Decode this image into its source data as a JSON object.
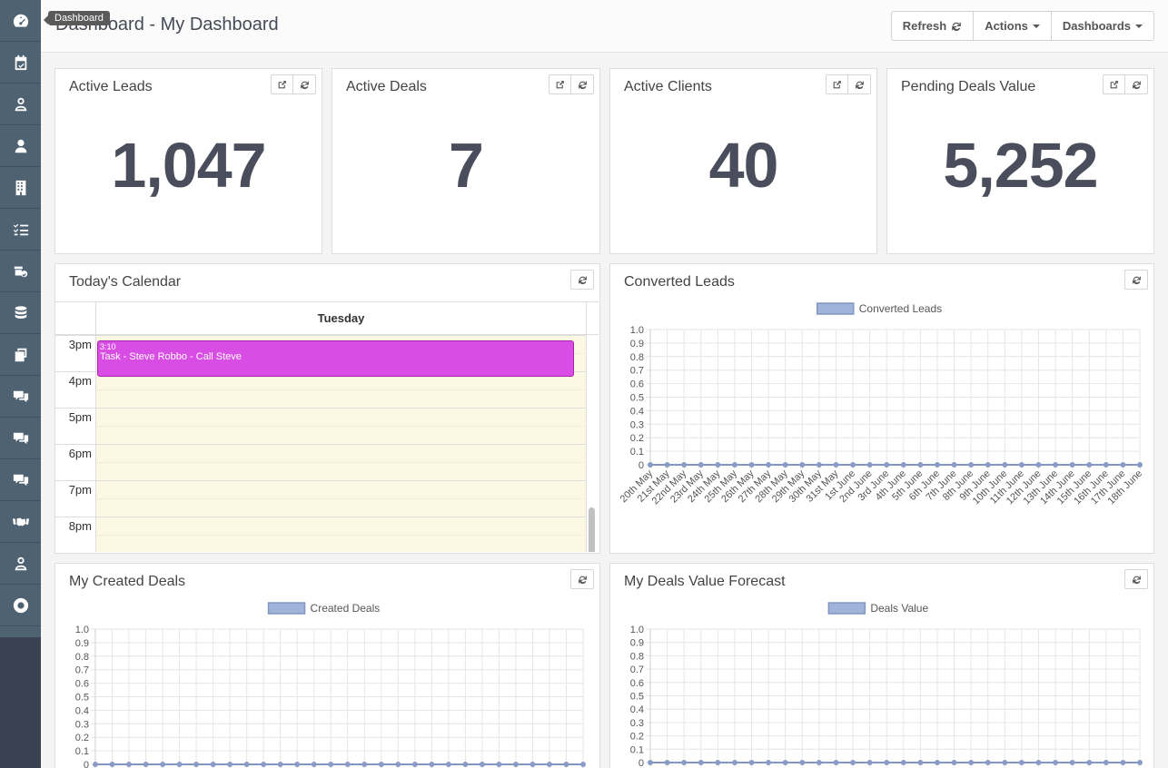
{
  "sidebar": {
    "tooltip": "Dashboard",
    "items": [
      {
        "icon": "dashboard-icon"
      },
      {
        "icon": "calendar-check-icon"
      },
      {
        "icon": "user-outline-icon"
      },
      {
        "icon": "user-icon"
      },
      {
        "icon": "building-icon"
      },
      {
        "icon": "checklist-icon"
      },
      {
        "icon": "box-check-icon"
      },
      {
        "icon": "database-icon"
      },
      {
        "icon": "copy-icon"
      },
      {
        "icon": "chat-presentation-icon"
      },
      {
        "icon": "chat-presentation-icon"
      },
      {
        "icon": "chat-presentation-icon"
      },
      {
        "icon": "handshake-icon"
      },
      {
        "icon": "user-outline-icon"
      },
      {
        "icon": "support-icon"
      }
    ]
  },
  "header": {
    "title": "Dashboard - My Dashboard",
    "refresh_label": "Refresh",
    "actions_label": "Actions",
    "dashboards_label": "Dashboards"
  },
  "stats": [
    {
      "title": "Active Leads",
      "value": "1,047"
    },
    {
      "title": "Active Deals",
      "value": "7"
    },
    {
      "title": "Active Clients",
      "value": "40"
    },
    {
      "title": "Pending Deals Value",
      "value": "5,252"
    }
  ],
  "calendar": {
    "title": "Today's Calendar",
    "day": "Tuesday",
    "hours": [
      "3pm",
      "4pm",
      "5pm",
      "6pm",
      "7pm",
      "8pm"
    ],
    "event": {
      "time": "3:10",
      "label": "Task - Steve Robbo - Call Steve",
      "color": "#d84de3"
    }
  },
  "charts": {
    "converted": {
      "title": "Converted Leads"
    },
    "created": {
      "title": "My Created Deals"
    },
    "forecast": {
      "title": "My Deals Value Forecast"
    }
  },
  "chart_data": [
    {
      "type": "line",
      "legend_position": "top",
      "grid": true,
      "x": [
        "20th May",
        "21st May",
        "22nd May",
        "23rd May",
        "24th May",
        "25th May",
        "26th May",
        "27th May",
        "28th May",
        "29th May",
        "30th May",
        "31st May",
        "1st June",
        "2nd June",
        "3rd June",
        "4th June",
        "5th June",
        "6th June",
        "7th June",
        "8th June",
        "9th June",
        "10th June",
        "11th June",
        "12th June",
        "13th June",
        "14th June",
        "15th June",
        "16th June",
        "17th June",
        "18th June"
      ],
      "series": [
        {
          "name": "Converted Leads",
          "values": [
            0,
            0,
            0,
            0,
            0,
            0,
            0,
            0,
            0,
            0,
            0,
            0,
            0,
            0,
            0,
            0,
            0,
            0,
            0,
            0,
            0,
            0,
            0,
            0,
            0,
            0,
            0,
            0,
            0,
            0
          ]
        }
      ],
      "yticks": [
        "1.0",
        "0.9",
        "0.8",
        "0.7",
        "0.6",
        "0.5",
        "0.4",
        "0.3",
        "0.2",
        "0.1",
        "0"
      ],
      "ylim": [
        0,
        1
      ],
      "color": "#9fb4d8"
    },
    {
      "type": "line",
      "legend_position": "top",
      "grid": true,
      "x_count": 30,
      "series": [
        {
          "name": "Created Deals",
          "values": [
            0,
            0,
            0,
            0,
            0,
            0,
            0,
            0,
            0,
            0,
            0,
            0,
            0,
            0,
            0,
            0,
            0,
            0,
            0,
            0,
            0,
            0,
            0,
            0,
            0,
            0,
            0,
            0,
            0,
            0
          ]
        }
      ],
      "yticks": [
        "1.0",
        "0.9",
        "0.8",
        "0.7",
        "0.6",
        "0.5",
        "0.4",
        "0.3",
        "0.2",
        "0.1",
        "0"
      ],
      "ylim": [
        0,
        1
      ],
      "color": "#9fb4d8"
    },
    {
      "type": "line",
      "legend_position": "top",
      "grid": true,
      "x_count": 30,
      "series": [
        {
          "name": "Deals Value",
          "values": [
            0,
            0,
            0,
            0,
            0,
            0,
            0,
            0,
            0,
            0,
            0,
            0,
            0,
            0,
            0,
            0,
            0,
            0,
            0,
            0,
            0,
            0,
            0,
            0,
            0,
            0,
            0,
            0,
            0,
            0
          ]
        }
      ],
      "yticks": [
        "1.0",
        "0.9",
        "0.8",
        "0.7",
        "0.6",
        "0.5",
        "0.4",
        "0.3",
        "0.2",
        "0.1",
        "0"
      ],
      "ylim": [
        0,
        1
      ],
      "color": "#9fb4d8"
    }
  ]
}
